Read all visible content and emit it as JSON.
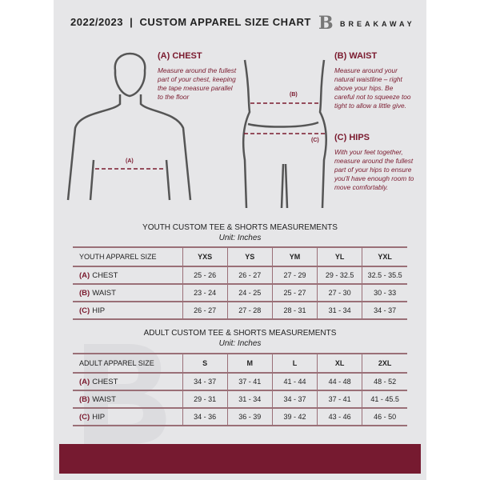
{
  "header": {
    "title": "2022/2023  |  CUSTOM APPAREL SIZE CHART",
    "brand": "BREAKAWAY",
    "logo_letter": "B"
  },
  "guide": {
    "chest": {
      "title": "(A) CHEST",
      "text": "Measure around the fullest part of your chest, keeping the tape measure parallel to the floor",
      "marker": "(A)"
    },
    "waist": {
      "title": "(B) WAIST",
      "text": "Measure around your natural waistline – right above your hips. Be careful not to squeeze too tight to allow a little give.",
      "marker": "(B)"
    },
    "hips": {
      "title": "(C) HIPS",
      "text": "With your feet together, measure around the fullest part of your hips to ensure you'll have enough room to move comfortably.",
      "marker": "(C)"
    }
  },
  "youth": {
    "title": "YOUTH CUSTOM TEE & SHORTS MEASUREMENTS",
    "unit": "Unit: Inches",
    "header": "YOUTH APPAREL SIZE",
    "sizes": [
      "YXS",
      "YS",
      "YM",
      "YL",
      "YXL"
    ],
    "rows": [
      {
        "tag": "(A)",
        "label": "CHEST",
        "values": [
          "25 - 26",
          "26 - 27",
          "27 - 29",
          "29 - 32.5",
          "32.5 - 35.5"
        ]
      },
      {
        "tag": "(B)",
        "label": "WAIST",
        "values": [
          "23 - 24",
          "24 - 25",
          "25 - 27",
          "27 - 30",
          "30 - 33"
        ]
      },
      {
        "tag": "(C)",
        "label": "HIP",
        "values": [
          "26 - 27",
          "27 - 28",
          "28 - 31",
          "31 - 34",
          "34 - 37"
        ]
      }
    ]
  },
  "adult": {
    "title": "ADULT CUSTOM TEE & SHORTS MEASUREMENTS",
    "unit": "Unit: Inches",
    "header": "ADULT APPAREL SIZE",
    "sizes": [
      "S",
      "M",
      "L",
      "XL",
      "2XL"
    ],
    "rows": [
      {
        "tag": "(A)",
        "label": "CHEST",
        "values": [
          "34 - 37",
          "37 - 41",
          "41 - 44",
          "44 - 48",
          "48 - 52"
        ]
      },
      {
        "tag": "(B)",
        "label": "WAIST",
        "values": [
          "29 - 31",
          "31 - 34",
          "34 - 37",
          "37 - 41",
          "41 - 45.5"
        ]
      },
      {
        "tag": "(C)",
        "label": "HIP",
        "values": [
          "34 - 36",
          "36 - 39",
          "39 - 42",
          "43 - 46",
          "46 - 50"
        ]
      }
    ]
  },
  "colors": {
    "accent": "#761a30",
    "background": "#e6e6e8"
  }
}
